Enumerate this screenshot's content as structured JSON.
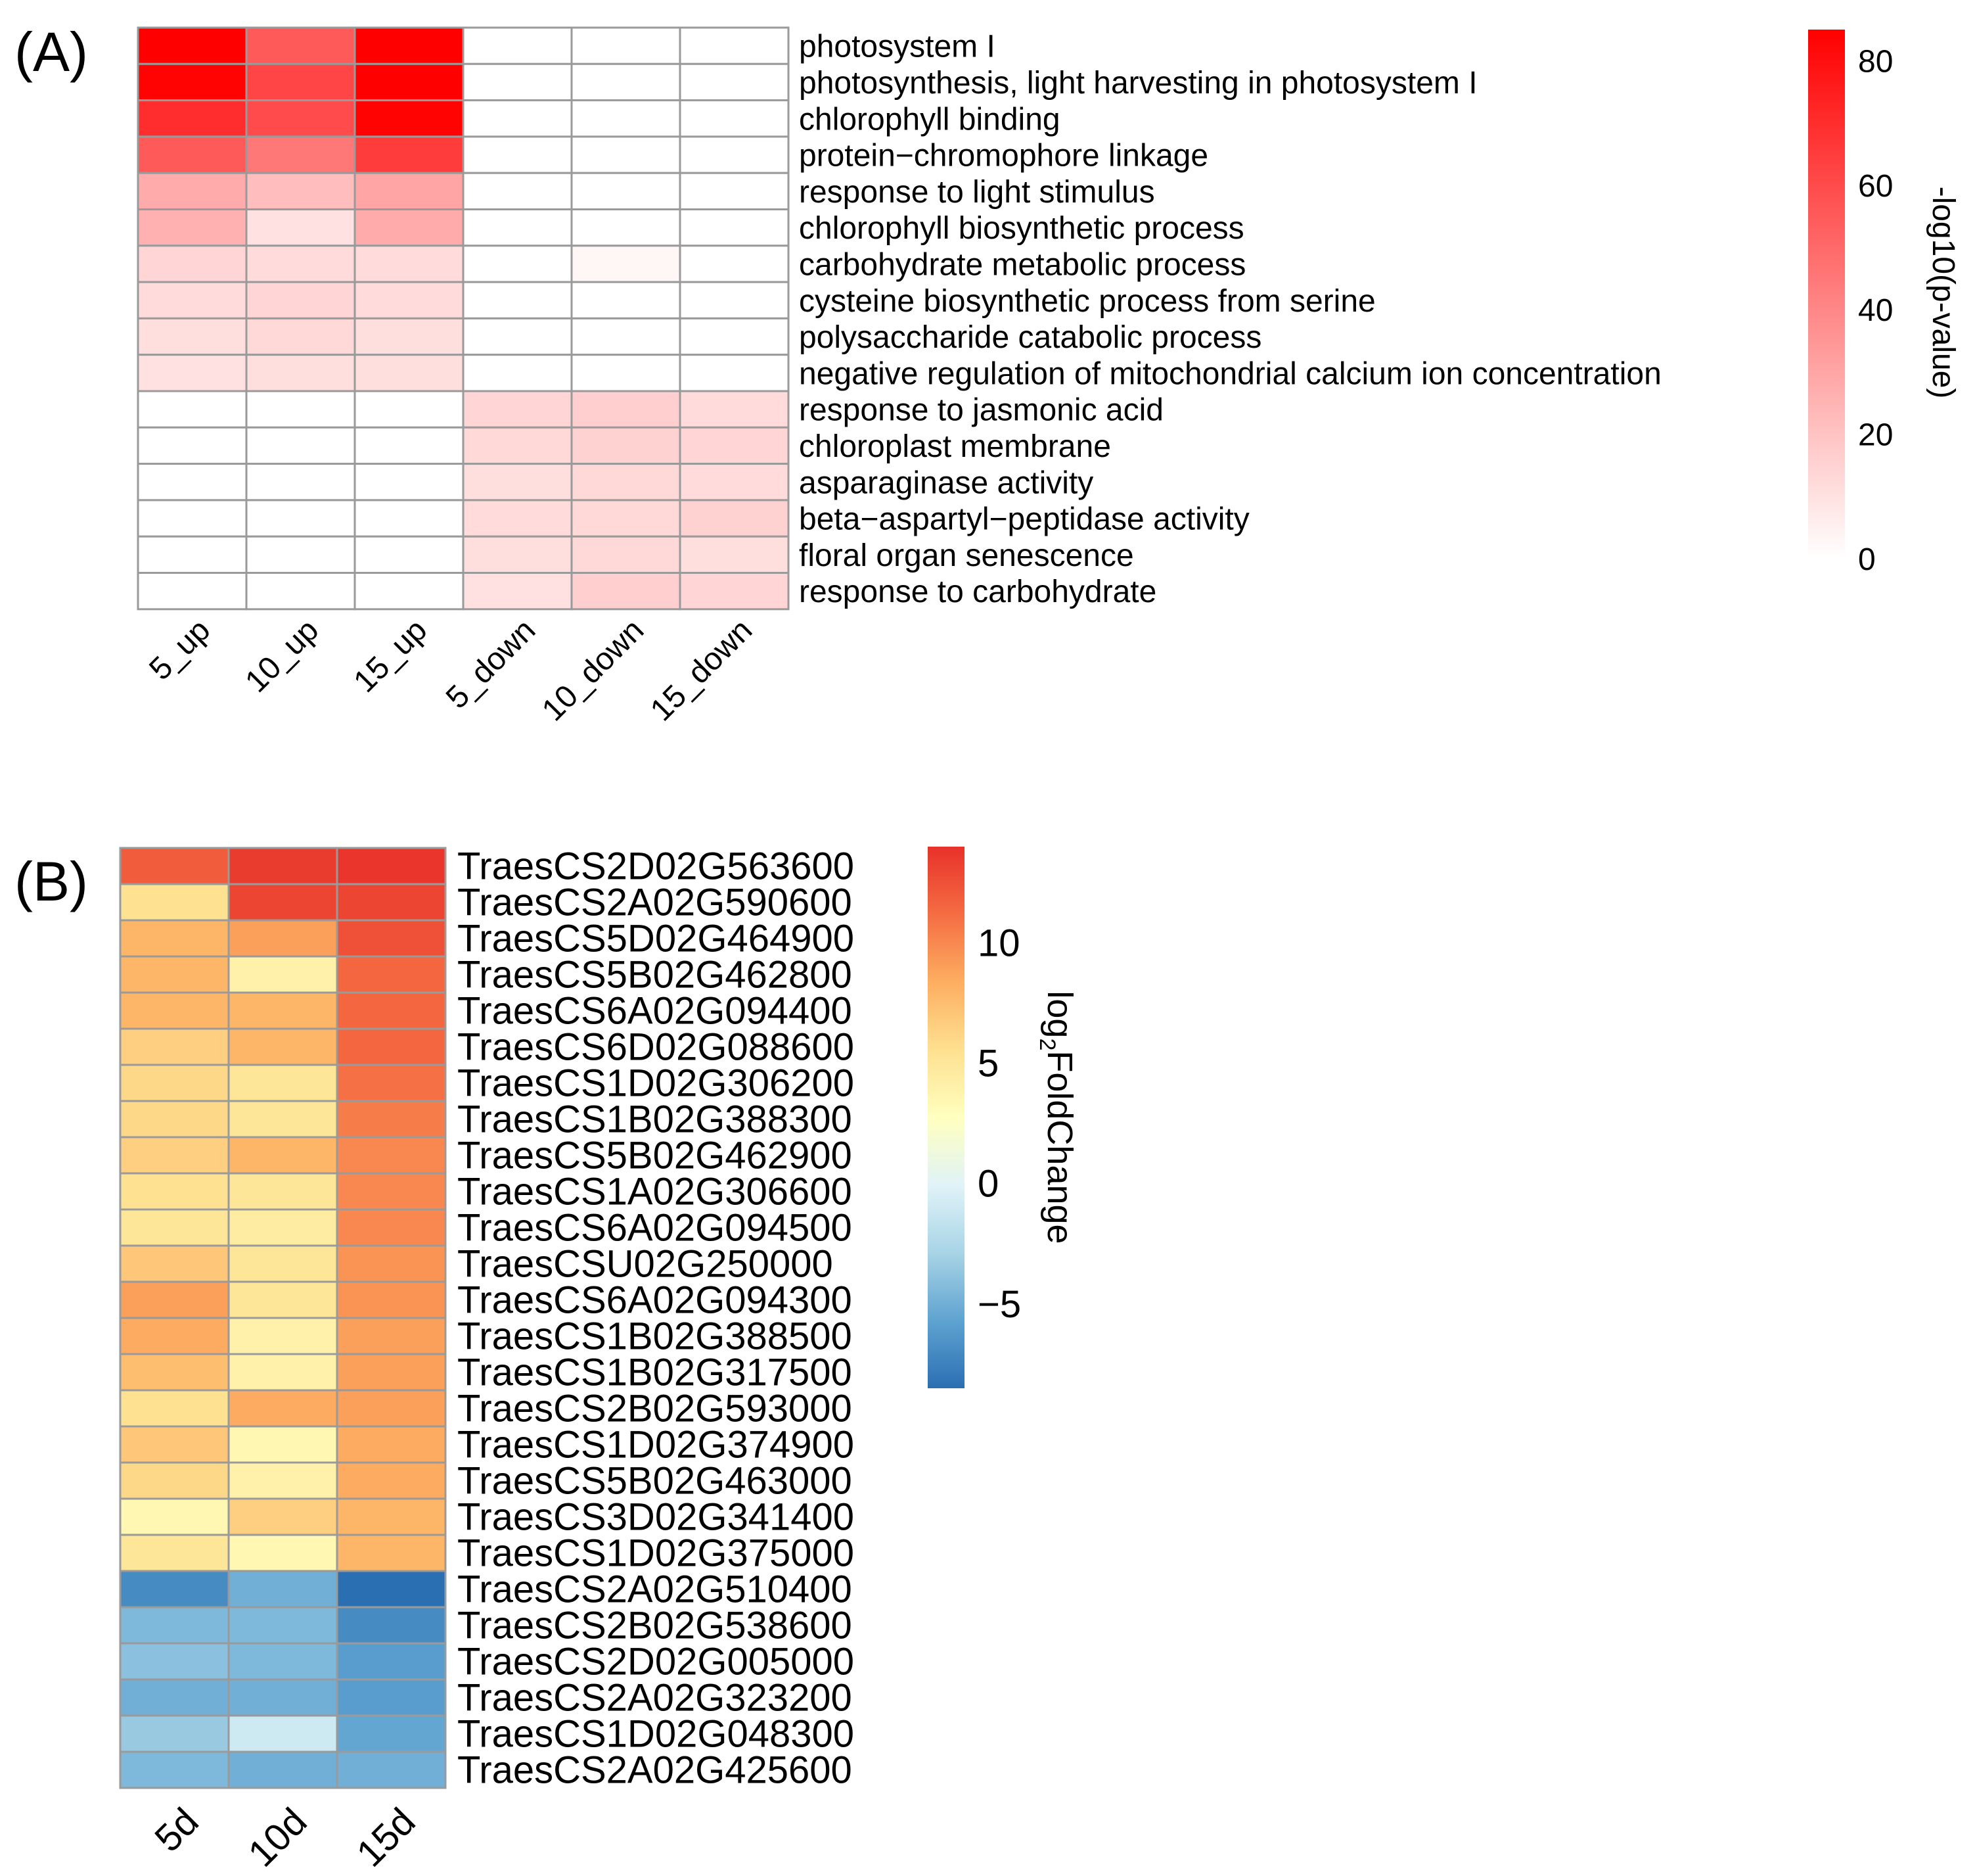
{
  "chart_data": [
    {
      "panel": "(A)",
      "type": "heatmap",
      "columns": [
        "5_up",
        "10_up",
        "15_up",
        "5_down",
        "10_down",
        "15_down"
      ],
      "rows": [
        "photosystem I",
        "photosynthesis, light harvesting in photosystem I",
        "chlorophyll binding",
        "protein−chromophore linkage",
        "response to light stimulus",
        "chlorophyll biosynthetic process",
        "carbohydrate metabolic process",
        "cysteine biosynthetic process from serine",
        "polysaccharide catabolic process",
        "negative regulation of mitochondrial calcium ion concentration",
        "response to jasmonic acid",
        "chloroplast membrane",
        "asparaginase activity",
        "beta−aspartyl−peptidase activity",
        "floral organ senescence",
        "response to carbohydrate"
      ],
      "values": [
        [
          85,
          55,
          85,
          0,
          0,
          0
        ],
        [
          84,
          62,
          85,
          0,
          0,
          0
        ],
        [
          70,
          60,
          84,
          0,
          0,
          0
        ],
        [
          55,
          45,
          65,
          0,
          0,
          0
        ],
        [
          28,
          22,
          30,
          0,
          0,
          0
        ],
        [
          26,
          10,
          28,
          0,
          0,
          0
        ],
        [
          14,
          12,
          12,
          0,
          3,
          0
        ],
        [
          12,
          14,
          12,
          0,
          0,
          0
        ],
        [
          11,
          13,
          11,
          0,
          0,
          0
        ],
        [
          10,
          11,
          11,
          0,
          0,
          0
        ],
        [
          0,
          0,
          0,
          14,
          16,
          12
        ],
        [
          0,
          0,
          0,
          13,
          15,
          14
        ],
        [
          0,
          0,
          0,
          11,
          13,
          12
        ],
        [
          0,
          0,
          0,
          12,
          13,
          15
        ],
        [
          0,
          0,
          0,
          11,
          13,
          11
        ],
        [
          0,
          0,
          0,
          10,
          16,
          14
        ]
      ],
      "colorbar": {
        "label": "-log10(p-value)",
        "range": [
          0,
          85
        ],
        "ticks": [
          "80",
          "60",
          "40",
          "20",
          "0"
        ],
        "tick_values": [
          80,
          60,
          40,
          20,
          0
        ],
        "colors": [
          "#ffffff",
          "#ff0000"
        ]
      }
    },
    {
      "panel": "(B)",
      "type": "heatmap",
      "columns": [
        "5d",
        "10d",
        "15d"
      ],
      "rows": [
        "TraesCS2D02G563600",
        "TraesCS2A02G590600",
        "TraesCS5D02G464900",
        "TraesCS5B02G462800",
        "TraesCS6A02G094400",
        "TraesCS6D02G088600",
        "TraesCS1D02G306200",
        "TraesCS1B02G388300",
        "TraesCS5B02G462900",
        "TraesCS1A02G306600",
        "TraesCS6A02G094500",
        "TraesCSU02G250000",
        "TraesCS6A02G094300",
        "TraesCS1B02G388500",
        "TraesCS1B02G317500",
        "TraesCS2B02G593000",
        "TraesCS1D02G374900",
        "TraesCS5B02G463000",
        "TraesCS3D02G341400",
        "TraesCS1D02G375000",
        "TraesCS2A02G510400",
        "TraesCS2B02G538600",
        "TraesCS2D02G005000",
        "TraesCS2A02G323200",
        "TraesCS1D02G048300",
        "TraesCS2A02G425600"
      ],
      "values": [
        [
          12,
          13.5,
          13.8
        ],
        [
          5.5,
          13,
          13
        ],
        [
          8,
          9,
          12.5
        ],
        [
          8,
          4,
          11.5
        ],
        [
          8,
          8,
          11.5
        ],
        [
          6.5,
          8,
          11.5
        ],
        [
          6,
          5,
          11
        ],
        [
          6,
          5,
          10.5
        ],
        [
          6.5,
          8,
          10
        ],
        [
          5.5,
          5,
          10
        ],
        [
          5,
          4.5,
          10
        ],
        [
          7,
          5,
          9.5
        ],
        [
          9,
          5,
          9.5
        ],
        [
          8.5,
          4,
          9
        ],
        [
          7.5,
          4,
          9
        ],
        [
          5.5,
          8.5,
          9
        ],
        [
          7,
          3.5,
          8.5
        ],
        [
          6,
          4,
          8.5
        ],
        [
          3.5,
          6.5,
          8
        ],
        [
          5,
          3.5,
          8
        ],
        [
          -7,
          -5,
          -8.5
        ],
        [
          -4.5,
          -4.5,
          -7
        ],
        [
          -4,
          -4.5,
          -6
        ],
        [
          -5,
          -5,
          -6
        ],
        [
          -3.5,
          -1,
          -5.5
        ],
        [
          -4.5,
          -5,
          -5
        ]
      ],
      "colorbar": {
        "label": "log2FoldChange",
        "label_base": "log",
        "label_sub": "2",
        "label_rest": "FoldChange",
        "range": [
          -8.5,
          14
        ],
        "ticks": [
          "10",
          "5",
          "0",
          "−5"
        ],
        "tick_values": [
          10,
          5,
          0,
          -5
        ],
        "colors": [
          "#2b6fb3",
          "#5fa3d1",
          "#a8d4e6",
          "#e0f3f8",
          "#ffffbf",
          "#fee090",
          "#fdae61",
          "#f46d43",
          "#e8312a"
        ]
      }
    }
  ]
}
